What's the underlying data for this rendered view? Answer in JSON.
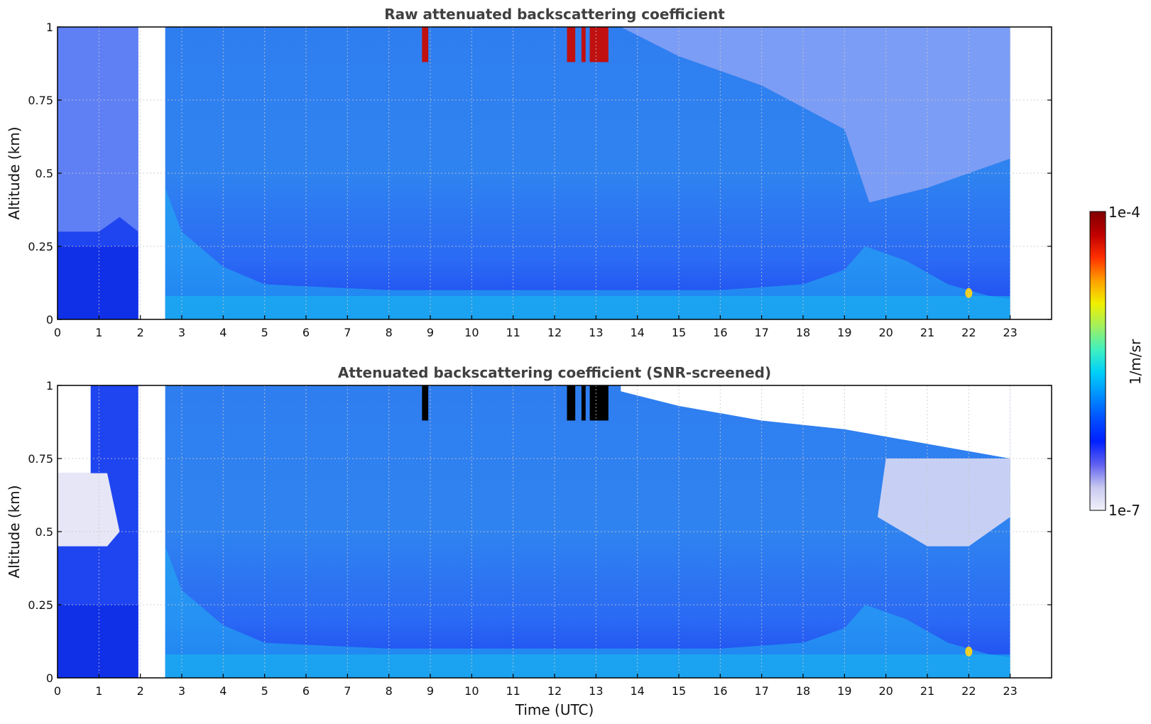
{
  "figure": {
    "xlabel": "Time (UTC)",
    "colorbar": {
      "label": "1/m/sr",
      "max_label": "1e-4",
      "min_label": "1e-7",
      "scale": "log",
      "range": [
        1e-07,
        0.0001
      ],
      "colormap_stops": [
        "#f2f2fa",
        "#c8c8f0",
        "#6060f0",
        "#0020ff",
        "#0050ff",
        "#0090ff",
        "#00d0f8",
        "#40f0c0",
        "#a0f060",
        "#f0f000",
        "#ffa000",
        "#ff3000",
        "#c00000",
        "#800000"
      ]
    }
  },
  "chart_data": [
    {
      "type": "heatmap",
      "title": "Raw attenuated backscattering coefficient",
      "xlabel": "",
      "ylabel": "Altitude (km)",
      "xlim": [
        0,
        24
      ],
      "ylim": [
        0,
        1
      ],
      "xticks": [
        "0",
        "1",
        "2",
        "3",
        "4",
        "5",
        "6",
        "7",
        "8",
        "9",
        "10",
        "11",
        "12",
        "13",
        "14",
        "15",
        "16",
        "17",
        "18",
        "19",
        "20",
        "21",
        "22",
        "23"
      ],
      "yticks": [
        "0",
        "0.25",
        "0.5",
        "0.75",
        "1"
      ],
      "grid": true,
      "data_gap": [
        1.95,
        2.6
      ],
      "data_end": 23,
      "features": {
        "high_backscatter_columns": [
          [
            8.8,
            8.95
          ],
          [
            12.3,
            12.5
          ],
          [
            12.65,
            12.75
          ],
          [
            12.85,
            13.3
          ]
        ],
        "near_surface_layer_top": 0.08,
        "aerosol_plume_near": [
          22.0,
          0.09
        ]
      }
    },
    {
      "type": "heatmap",
      "title": "Attenuated backscattering coefficient (SNR-screened)",
      "xlabel": "Time (UTC)",
      "ylabel": "Altitude (km)",
      "xlim": [
        0,
        24
      ],
      "ylim": [
        0,
        1
      ],
      "xticks": [
        "0",
        "1",
        "2",
        "3",
        "4",
        "5",
        "6",
        "7",
        "8",
        "9",
        "10",
        "11",
        "12",
        "13",
        "14",
        "15",
        "16",
        "17",
        "18",
        "19",
        "20",
        "21",
        "22",
        "23"
      ],
      "yticks": [
        "0",
        "0.25",
        "0.5",
        "0.75",
        "1"
      ],
      "grid": true,
      "data_gap": [
        1.95,
        2.6
      ],
      "data_end": 23,
      "features": {
        "screened_top_after": 13.5,
        "high_backscatter_columns": [
          [
            8.8,
            8.95
          ],
          [
            12.3,
            12.5
          ],
          [
            12.65,
            12.75
          ],
          [
            12.85,
            13.3
          ]
        ],
        "aerosol_plume_near": [
          22.0,
          0.09
        ]
      }
    }
  ]
}
